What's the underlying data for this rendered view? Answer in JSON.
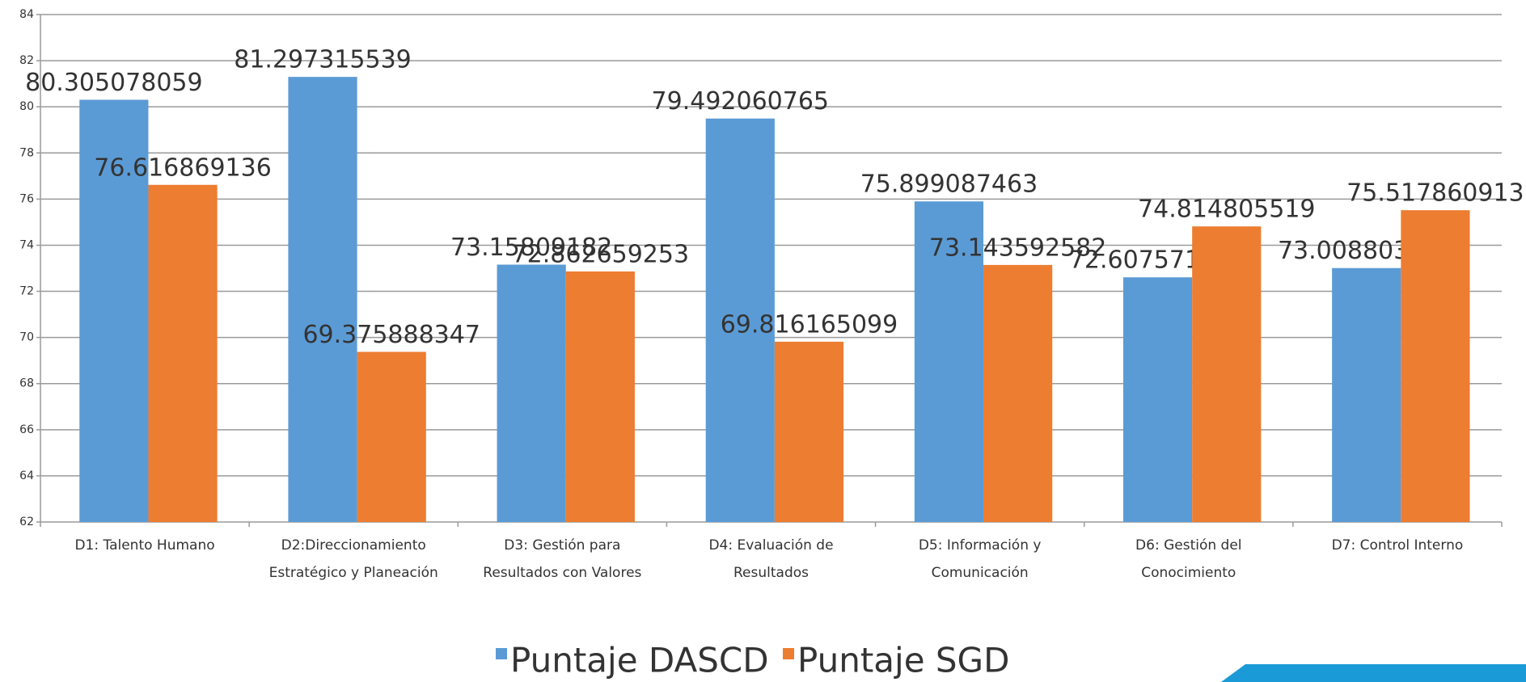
{
  "chart_data": {
    "type": "bar",
    "categories": [
      "D1: Talento Humano",
      "D2:Direccionamiento Estratégico y Planeación",
      "D3: Gestión para Resultados con Valores",
      "D4: Evaluación de Resultados",
      "D5: Información y Comunicación",
      "D6: Gestión del Conocimiento",
      "D7: Control Interno"
    ],
    "series": [
      {
        "name": "Puntaje DASCD",
        "color": "#5b9bd5",
        "values": [
          80.305078059,
          81.297315539,
          73.15809182,
          79.492060765,
          75.899087463,
          72.607571784,
          73.008803706
        ]
      },
      {
        "name": "Puntaje SGD",
        "color": "#ed7d31",
        "values": [
          76.616869136,
          69.375888347,
          72.862659253,
          69.816165099,
          73.143592582,
          74.814805519,
          75.517860913
        ]
      }
    ],
    "ylim": [
      62,
      84
    ],
    "yticks": [
      62,
      64,
      66,
      68,
      70,
      72,
      74,
      76,
      78,
      80,
      82,
      84
    ],
    "grid": true,
    "legend": "bottom"
  }
}
